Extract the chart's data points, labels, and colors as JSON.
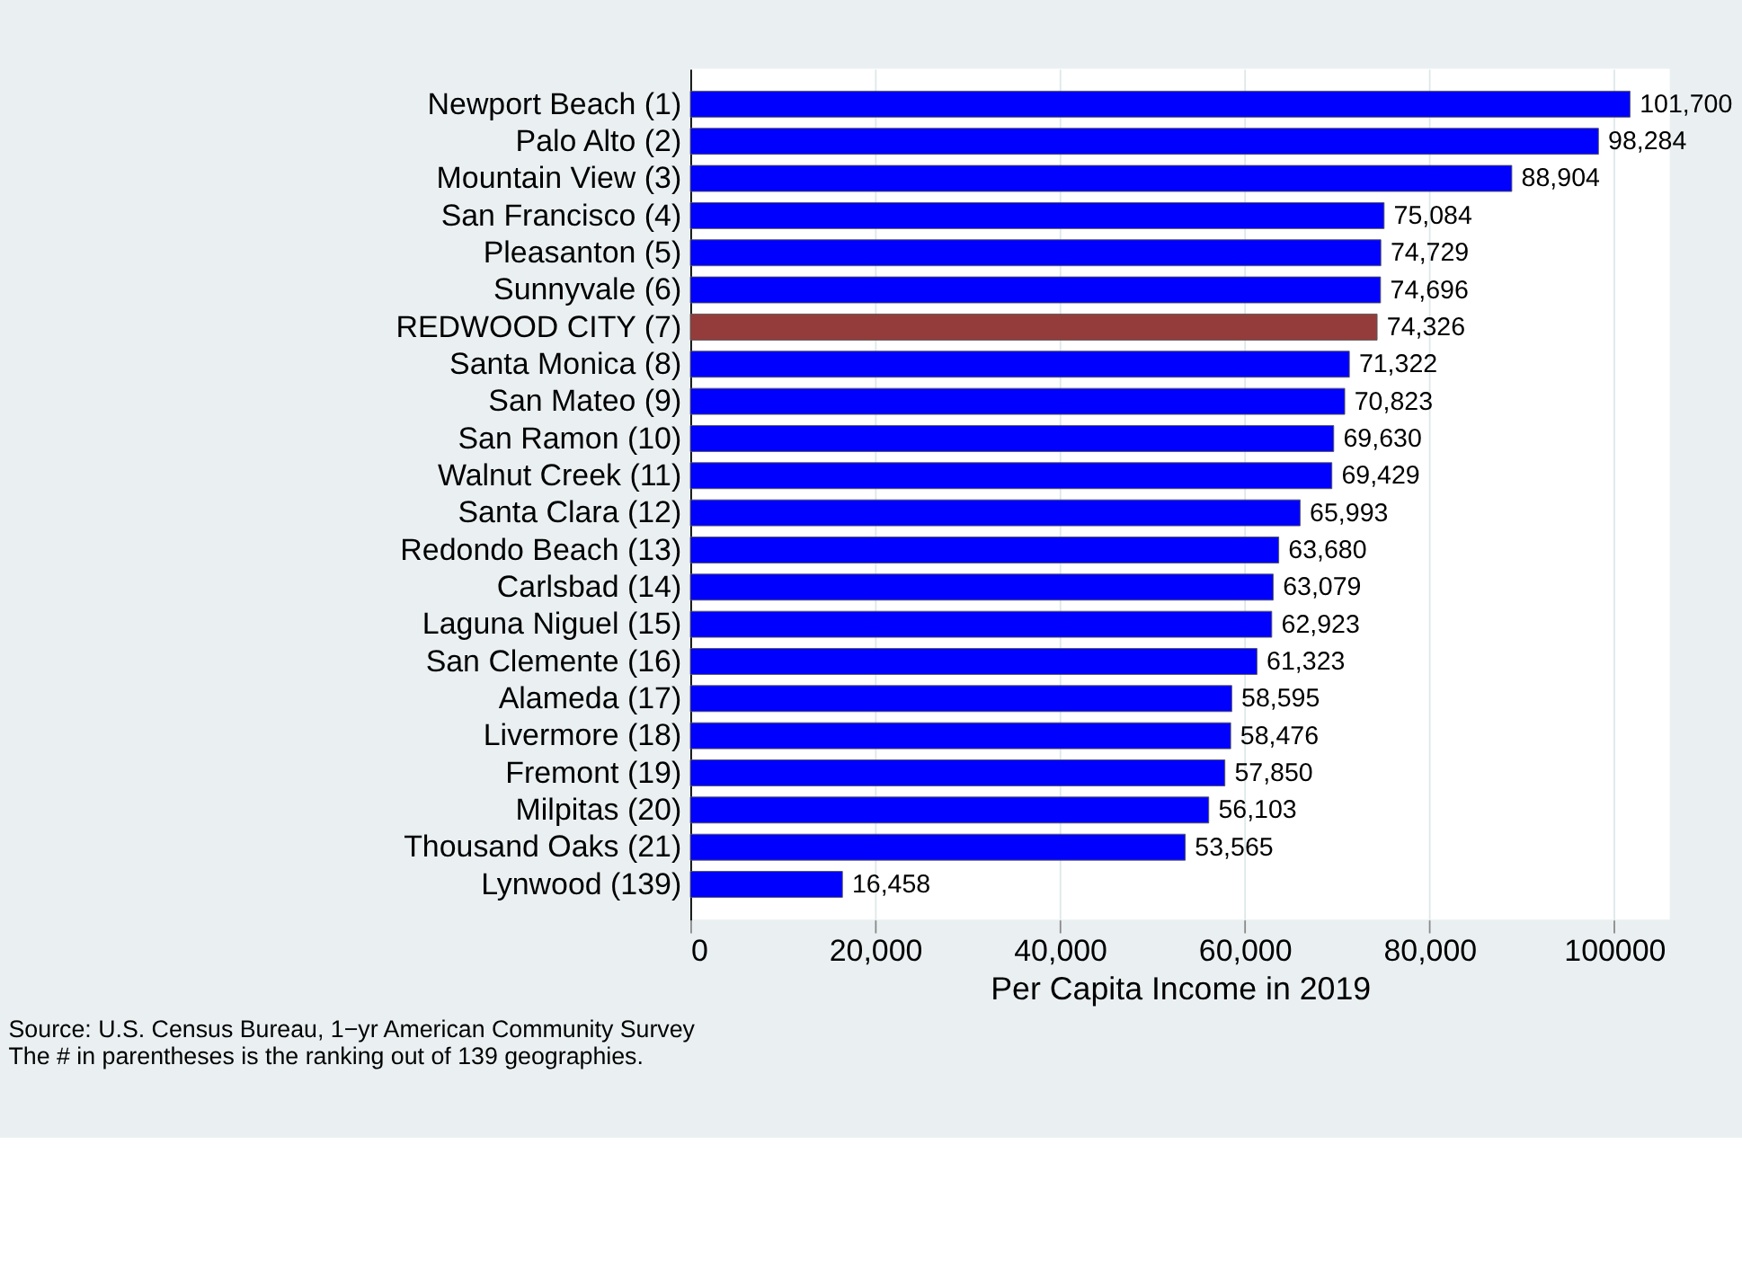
{
  "chart_data": {
    "type": "bar",
    "orientation": "horizontal",
    "categories": [
      "Newport Beach  (1)",
      "Palo Alto  (2)",
      "Mountain View  (3)",
      "San Francisco  (4)",
      "Pleasanton  (5)",
      "Sunnyvale  (6)",
      "REDWOOD CITY  (7)",
      "Santa Monica  (8)",
      "San Mateo  (9)",
      "San Ramon (10)",
      "Walnut Creek (11)",
      "Santa Clara (12)",
      "Redondo Beach (13)",
      "Carlsbad (14)",
      "Laguna Niguel (15)",
      "San Clemente (16)",
      "Alameda (17)",
      "Livermore (18)",
      "Fremont (19)",
      "Milpitas (20)",
      "Thousand Oaks (21)",
      "Lynwood (139)"
    ],
    "values": [
      101700,
      98284,
      88904,
      75084,
      74729,
      74696,
      74326,
      71322,
      70823,
      69630,
      69429,
      65993,
      63680,
      63079,
      62923,
      61323,
      58595,
      58476,
      57850,
      56103,
      53565,
      16458
    ],
    "colors": [
      "#0000ff",
      "#0000ff",
      "#0000ff",
      "#0000ff",
      "#0000ff",
      "#0000ff",
      "#943c3c",
      "#0000ff",
      "#0000ff",
      "#0000ff",
      "#0000ff",
      "#0000ff",
      "#0000ff",
      "#0000ff",
      "#0000ff",
      "#0000ff",
      "#0000ff",
      "#0000ff",
      "#0000ff",
      "#0000ff",
      "#0000ff",
      "#0000ff"
    ],
    "value_labels": [
      "101,700",
      "98,284",
      "88,904",
      "75,084",
      "74,729",
      "74,696",
      "74,326",
      "71,322",
      "70,823",
      "69,630",
      "69,429",
      "65,993",
      "63,680",
      "63,079",
      "62,923",
      "61,323",
      "58,595",
      "58,476",
      "57,850",
      "56,103",
      "53,565",
      "16,458"
    ],
    "xlabel": "Per Capita Income in 2019",
    "xlim": [
      0,
      106000
    ],
    "xticks": [
      0,
      {
        "value": 20000,
        "label": "20,000"
      },
      {
        "value": 40000,
        "label": "40,000"
      },
      {
        "value": 60000,
        "label": "60,000"
      },
      {
        "value": 80000,
        "label": "80,000"
      },
      100000
    ],
    "grid": "x",
    "annotations": [
      "Source: U.S. Census Bureau, 1−yr American Community Survey",
      "The # in parentheses is the ranking out of 139 geographies."
    ]
  }
}
